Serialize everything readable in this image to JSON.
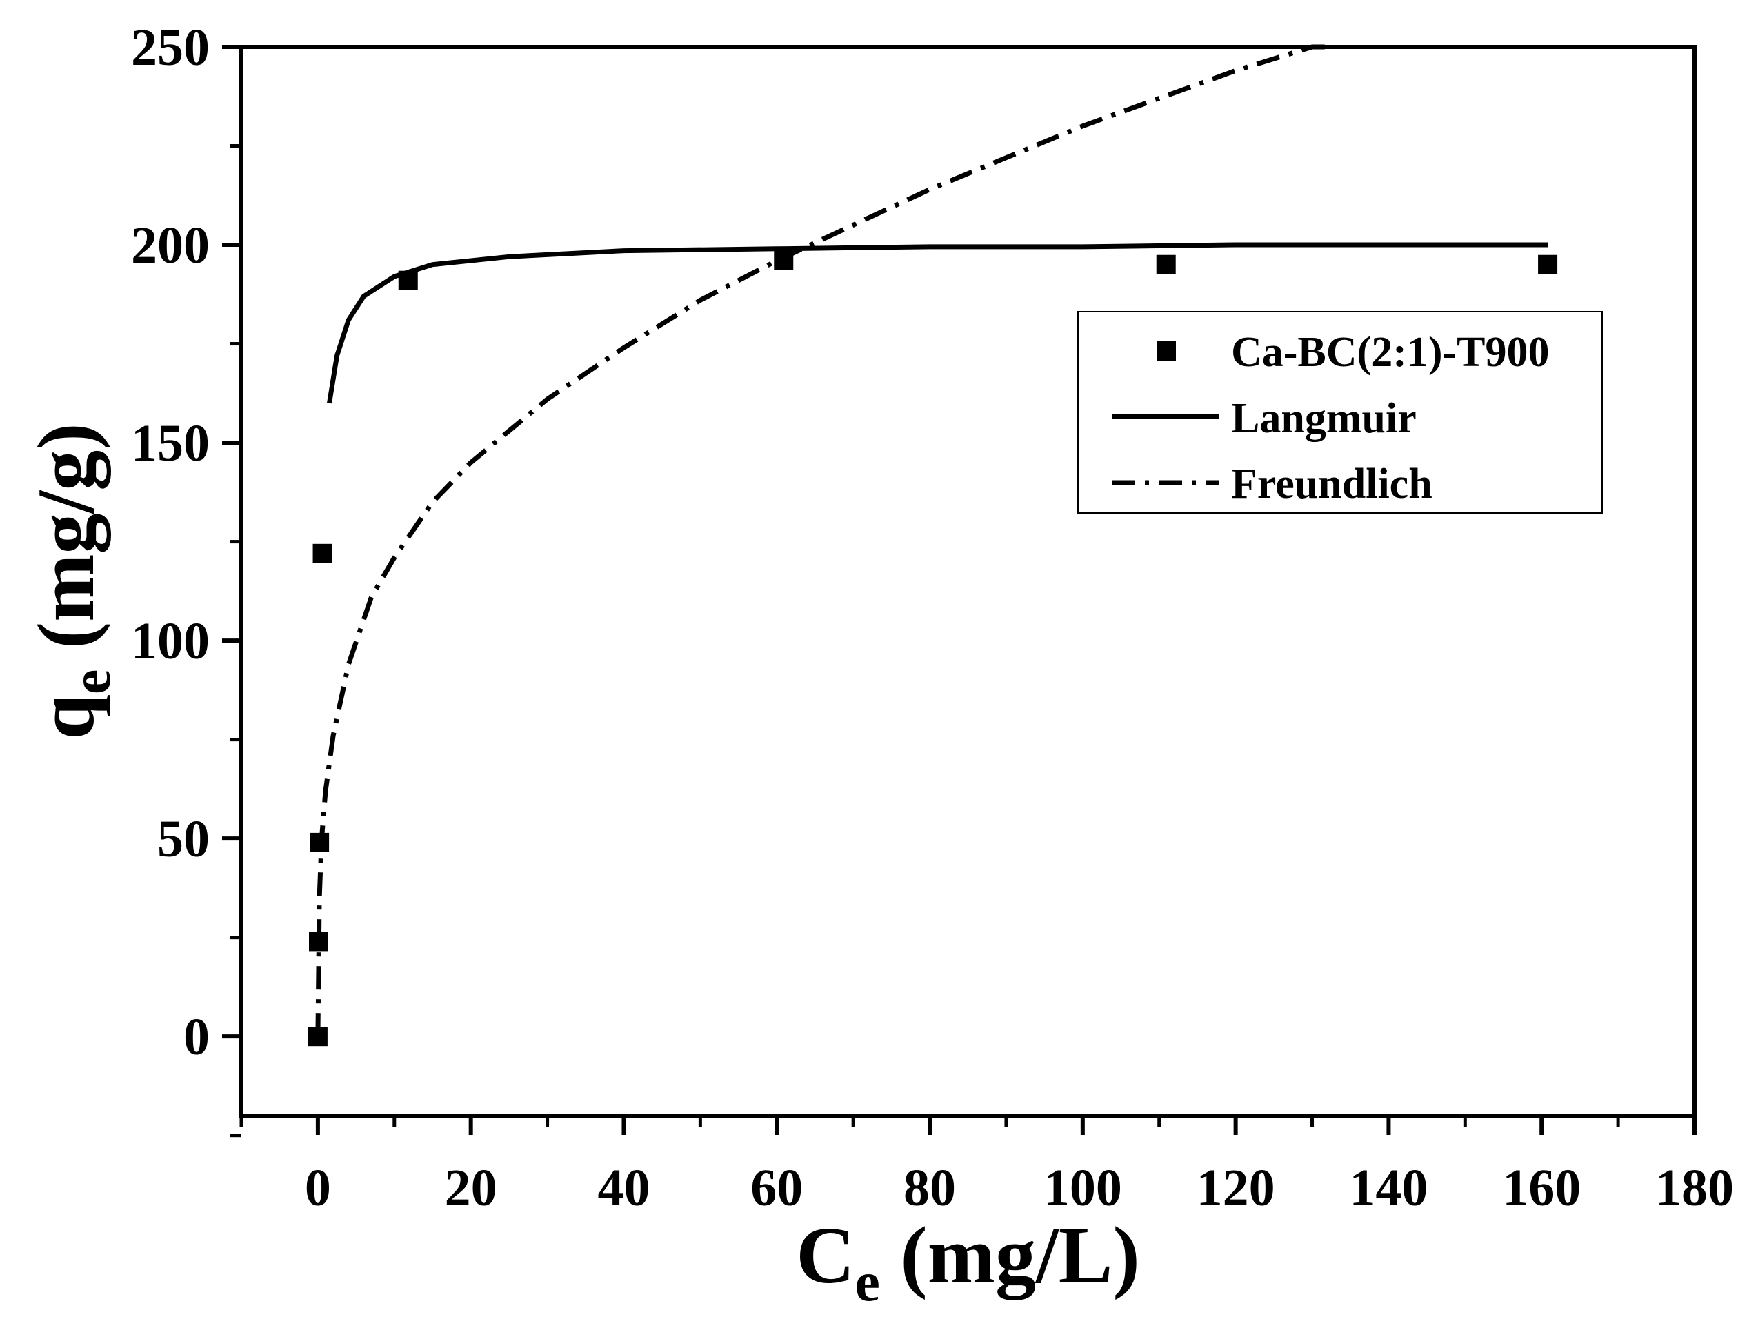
{
  "chart_data": {
    "type": "scatter",
    "title": "",
    "xlabel": {
      "main": "C",
      "sub": "e",
      "unit": " (mg/L)"
    },
    "ylabel": {
      "main": "q",
      "sub": "e",
      "unit": " (mg/g)"
    },
    "xlim": [
      -10,
      180
    ],
    "ylim": [
      -20,
      250
    ],
    "x_ticks": [
      0,
      20,
      40,
      60,
      80,
      100,
      120,
      140,
      160,
      180
    ],
    "x_tick_labels": [
      "0",
      "20",
      "40",
      "60",
      "80",
      "100",
      "120",
      "140",
      "160",
      "180"
    ],
    "y_ticks": [
      0,
      50,
      100,
      150,
      200,
      250
    ],
    "y_tick_labels": [
      "0",
      "50",
      "100",
      "150",
      "200",
      "250"
    ],
    "grid": false,
    "legend_position": "right, upper-middle",
    "series": [
      {
        "name": "Ca-BC(2:1)-T900",
        "kind": "scatter",
        "marker": "square",
        "color": "#000000",
        "x": [
          0,
          0.1,
          0.2,
          0.6,
          11.8,
          60.9,
          110.9,
          160.8
        ],
        "y": [
          0,
          24,
          49,
          122,
          191,
          196,
          195,
          195
        ]
      },
      {
        "name": "Langmuir",
        "kind": "line",
        "style": "solid",
        "color": "#000000",
        "x": [
          1.5,
          2.5,
          4,
          6,
          10,
          15,
          25,
          40,
          60,
          80,
          100,
          120,
          140,
          160.8
        ],
        "y": [
          160,
          172,
          181,
          187,
          192,
          195,
          197,
          198.5,
          199,
          199.5,
          199.5,
          200,
          200,
          200
        ]
      },
      {
        "name": "Freundlich",
        "kind": "line",
        "style": "dash-dot",
        "color": "#000000",
        "x": [
          0,
          0.2,
          0.5,
          1,
          2,
          4,
          7,
          10,
          15,
          20,
          30,
          40,
          50,
          60,
          70,
          80,
          90,
          100,
          110,
          120,
          130,
          132
        ],
        "y": [
          0,
          35,
          50,
          62,
          76,
          94,
          111,
          121,
          135,
          145,
          161,
          174,
          186,
          196,
          205,
          214,
          222,
          230,
          237,
          244,
          250,
          251
        ]
      }
    ]
  }
}
